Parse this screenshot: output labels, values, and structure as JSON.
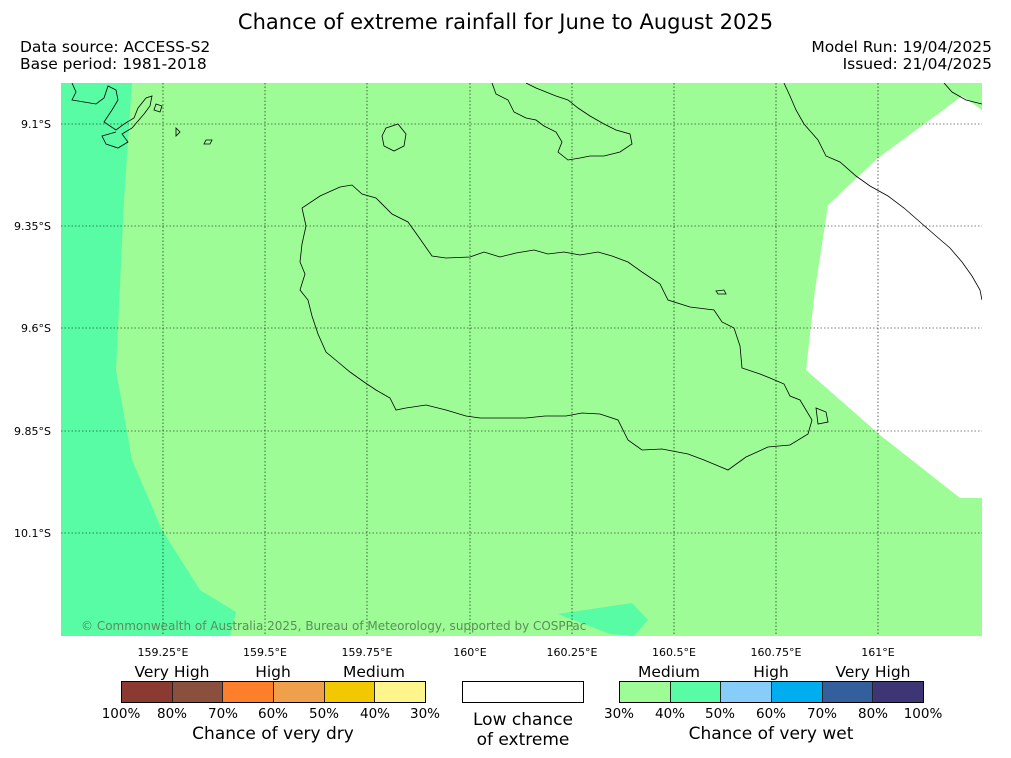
{
  "header": {
    "title": "Chance of extreme rainfall for June to August 2025",
    "data_source": "Data source: ACCESS-S2",
    "base_period": "Base period: 1981-2018",
    "model_run": "Model Run: 19/04/2025",
    "issued": "Issued: 21/04/2025"
  },
  "map": {
    "lat_labels": [
      "9.1°S",
      "9.35°S",
      "9.6°S",
      "9.85°S",
      "10.1°S"
    ],
    "lon_labels": [
      "159.25°E",
      "159.5°E",
      "159.75°E",
      "160°E",
      "160.25°E",
      "160.5°E",
      "160.75°E",
      "161°E"
    ],
    "copyright": "© Commonwealth of Australia 2025, Bureau of Meteorology, supported by COSPPac",
    "fill_colors": {
      "medium_wet": "#9dfc96",
      "high_wet": "#58fca4",
      "low": "#ffffff"
    }
  },
  "legend": {
    "dry": {
      "levels": [
        "Very High",
        "High",
        "Medium"
      ],
      "ticks": [
        "100%",
        "80%",
        "70%",
        "60%",
        "50%",
        "40%",
        "30%"
      ],
      "colors": [
        "#8b3a32",
        "#8b4f3e",
        "#fe7f29",
        "#f0a04a",
        "#f2c900",
        "#fef68c"
      ],
      "caption": "Chance of very dry"
    },
    "low": {
      "line1": "Low chance",
      "line2": "of extreme"
    },
    "wet": {
      "levels": [
        "Medium",
        "High",
        "Very High"
      ],
      "ticks": [
        "30%",
        "40%",
        "50%",
        "60%",
        "70%",
        "80%",
        "100%"
      ],
      "colors": [
        "#9dfc96",
        "#58fca4",
        "#86cdfa",
        "#00aeef",
        "#335f9c",
        "#3e3574"
      ],
      "caption": "Chance of very wet"
    }
  }
}
